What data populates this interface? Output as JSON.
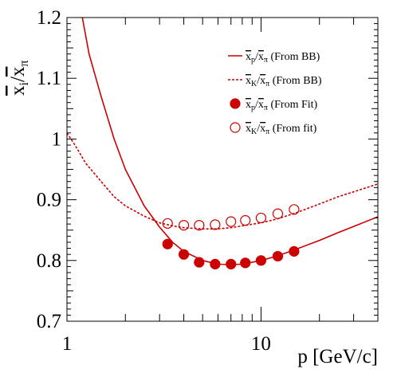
{
  "chart_data": {
    "type": "line",
    "xlabel": "p [GeV/c]",
    "ylabel": {
      "num": "x",
      "num_sub": "i",
      "den": "x",
      "den_sub": "π"
    },
    "x_scale": "log",
    "xlim": [
      1,
      40
    ],
    "ylim": [
      0.7,
      1.2
    ],
    "x_ticks": [
      {
        "value": 1,
        "label": "1"
      },
      {
        "value": 10,
        "label": "10"
      }
    ],
    "y_ticks": [
      {
        "value": 0.7,
        "label": "0.7"
      },
      {
        "value": 0.8,
        "label": "0.8"
      },
      {
        "value": 0.9,
        "label": "0.9"
      },
      {
        "value": 1.0,
        "label": "1"
      },
      {
        "value": 1.1,
        "label": "1.1"
      },
      {
        "value": 1.2,
        "label": "1.2"
      }
    ],
    "color": "#cc0000",
    "legend_position": "top-right",
    "series": [
      {
        "name": "x_p/x_π (From BB)",
        "legend": {
          "num": "x",
          "num_sub": "p",
          "den": "x",
          "den_sub": "π",
          "suffix": "(From BB)"
        },
        "style": "solid-line",
        "x": [
          1.2,
          1.3,
          1.5,
          1.75,
          2.0,
          2.5,
          3.0,
          3.5,
          4.0,
          5.0,
          6.0,
          7.0,
          8.0,
          10.0,
          12.0,
          15.0,
          20.0,
          25.0,
          30.0,
          40.0
        ],
        "y": [
          1.2,
          1.14,
          1.07,
          1.0,
          0.95,
          0.89,
          0.855,
          0.83,
          0.815,
          0.8,
          0.794,
          0.793,
          0.794,
          0.8,
          0.807,
          0.818,
          0.833,
          0.846,
          0.856,
          0.872
        ]
      },
      {
        "name": "x_K/x_π (From BB)",
        "legend": {
          "num": "x",
          "num_sub": "K",
          "den": "x",
          "den_sub": "π",
          "suffix": "(From BB)"
        },
        "style": "dashed-line",
        "x": [
          1.0,
          1.1,
          1.25,
          1.5,
          1.75,
          2.0,
          2.5,
          3.0,
          3.5,
          4.0,
          5.0,
          6.0,
          7.0,
          8.0,
          10.0,
          12.0,
          15.0,
          20.0,
          25.0,
          30.0,
          40.0
        ],
        "y": [
          1.01,
          0.99,
          0.96,
          0.93,
          0.905,
          0.89,
          0.873,
          0.862,
          0.857,
          0.854,
          0.852,
          0.852,
          0.854,
          0.857,
          0.862,
          0.868,
          0.878,
          0.893,
          0.905,
          0.913,
          0.926
        ]
      },
      {
        "name": "x_p/x_π (From Fit)",
        "legend": {
          "num": "x",
          "num_sub": "p",
          "den": "x",
          "den_sub": "π",
          "suffix": "(From Fit)"
        },
        "style": "filled-markers",
        "x": [
          3.3,
          4.0,
          4.8,
          5.8,
          7.0,
          8.3,
          10.0,
          12.2,
          14.8
        ],
        "y": [
          0.827,
          0.81,
          0.797,
          0.794,
          0.794,
          0.796,
          0.8,
          0.807,
          0.815
        ]
      },
      {
        "name": "x_K/x_π (From fit)",
        "legend": {
          "num": "x",
          "num_sub": "K",
          "den": "x",
          "den_sub": "π",
          "suffix": "(From fit)"
        },
        "style": "open-markers",
        "x": [
          3.3,
          4.0,
          4.8,
          5.8,
          7.0,
          8.3,
          10.0,
          12.2,
          14.8
        ],
        "y": [
          0.861,
          0.858,
          0.858,
          0.859,
          0.864,
          0.866,
          0.87,
          0.877,
          0.884
        ]
      }
    ]
  }
}
